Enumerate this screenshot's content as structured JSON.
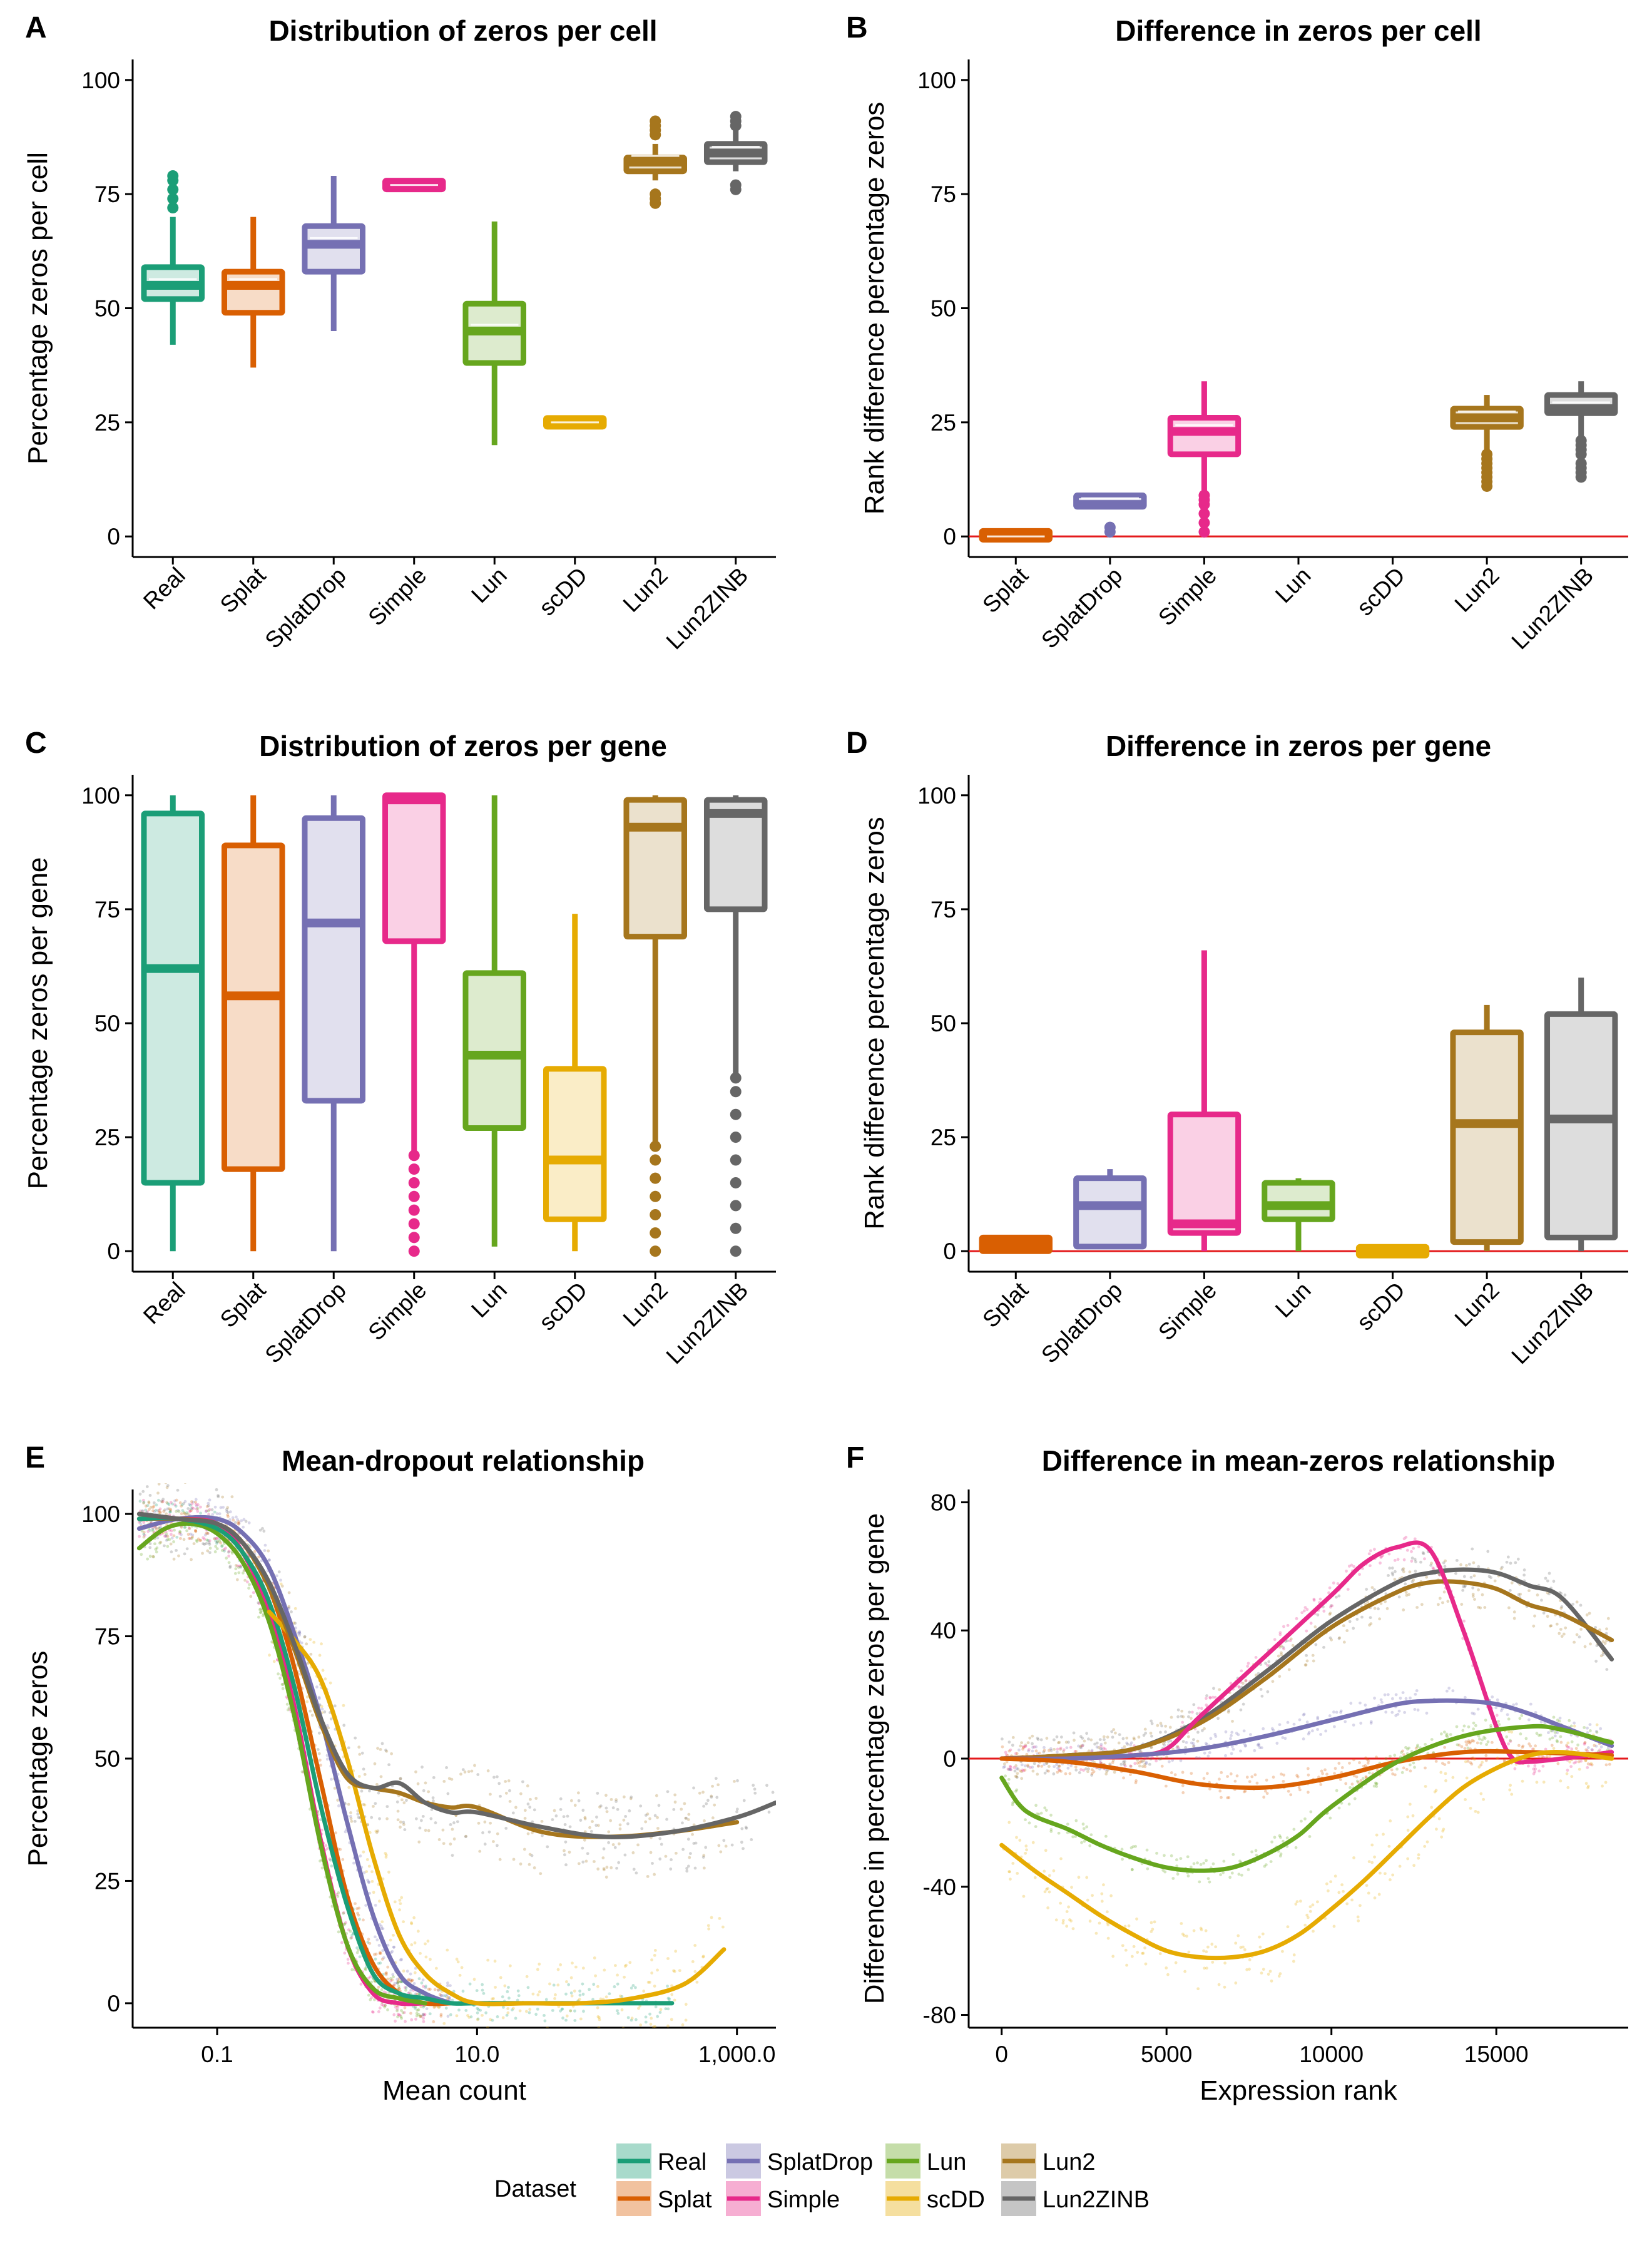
{
  "colors": {
    "Real": "#1b9e77",
    "Splat": "#d95f02",
    "SplatDrop": "#7570b3",
    "Simple": "#e7298a",
    "Lun": "#66a61e",
    "scDD": "#e6ab02",
    "Lun2": "#a6761d",
    "Lun2ZINB": "#666666",
    "refline": "#e41a1c"
  },
  "legend": {
    "title": "Dataset",
    "items": [
      "Real",
      "SplatDrop",
      "Lun",
      "Lun2",
      "Splat",
      "Simple",
      "scDD",
      "Lun2ZINB"
    ]
  },
  "chart_data": [
    {
      "tag": "A",
      "type": "box",
      "title": "Distribution of zeros per cell",
      "xlabel": "",
      "ylabel": "Percentage zeros per cell",
      "ylim": [
        0,
        100
      ],
      "yticks": [
        0,
        25,
        50,
        75,
        100
      ],
      "categories": [
        "Real",
        "Splat",
        "SplatDrop",
        "Simple",
        "Lun",
        "scDD",
        "Lun2",
        "Lun2ZINB"
      ],
      "boxes": [
        {
          "name": "Real",
          "min": 42,
          "q1": 52,
          "median": 55,
          "q3": 59,
          "max": 70,
          "outliers": [
            72,
            74,
            76,
            78,
            79
          ]
        },
        {
          "name": "Splat",
          "min": 37,
          "q1": 49,
          "median": 55,
          "q3": 58,
          "max": 70,
          "outliers": []
        },
        {
          "name": "SplatDrop",
          "min": 45,
          "q1": 58,
          "median": 64,
          "q3": 68,
          "max": 79,
          "outliers": []
        },
        {
          "name": "Simple",
          "min": 76.5,
          "q1": 76.8,
          "median": 77,
          "q3": 77.2,
          "max": 77.5,
          "outliers": []
        },
        {
          "name": "Lun",
          "min": 20,
          "q1": 38,
          "median": 45,
          "q3": 51,
          "max": 69,
          "outliers": []
        },
        {
          "name": "scDD",
          "min": 24.6,
          "q1": 24.9,
          "median": 25,
          "q3": 25.1,
          "max": 25.4,
          "outliers": []
        },
        {
          "name": "Lun2",
          "min": 78,
          "q1": 80,
          "median": 82,
          "q3": 83,
          "max": 86,
          "outliers": [
            73,
            74,
            75,
            88,
            89,
            90,
            91
          ]
        },
        {
          "name": "Lun2ZINB",
          "min": 80,
          "q1": 82,
          "median": 84,
          "q3": 86,
          "max": 89,
          "outliers": [
            76,
            77,
            90,
            91,
            92
          ]
        }
      ]
    },
    {
      "tag": "B",
      "type": "box",
      "title": "Difference in zeros per cell",
      "xlabel": "",
      "ylabel": "Rank difference percentage zeros",
      "ylim": [
        0,
        100
      ],
      "yticks": [
        0,
        25,
        50,
        75,
        100
      ],
      "hline": 0,
      "categories": [
        "Splat",
        "SplatDrop",
        "Simple",
        "Lun",
        "scDD",
        "Lun2",
        "Lun2ZINB"
      ],
      "boxes": [
        {
          "name": "Splat",
          "min": 0,
          "q1": 0,
          "median": 0,
          "q3": 0.5,
          "max": 1,
          "outliers": []
        },
        {
          "name": "SplatDrop",
          "min": 6,
          "q1": 6.5,
          "median": 7,
          "q3": 9,
          "max": 9,
          "outliers": [
            1,
            2
          ]
        },
        {
          "name": "Simple",
          "min": 10,
          "q1": 18,
          "median": 23,
          "q3": 26,
          "max": 34,
          "outliers": [
            1,
            3,
            5,
            7,
            8,
            9
          ]
        },
        {
          "name": "Lun2",
          "min": 19,
          "q1": 24,
          "median": 26,
          "q3": 28,
          "max": 31,
          "outliers": [
            11,
            12,
            13,
            14,
            15,
            16,
            17,
            18
          ]
        },
        {
          "name": "Lun2ZINB",
          "min": 22,
          "q1": 27,
          "median": 28,
          "q3": 31,
          "max": 34,
          "outliers": [
            13,
            14,
            15,
            16,
            18,
            19,
            20,
            21
          ]
        }
      ]
    },
    {
      "tag": "C",
      "type": "box",
      "title": "Distribution of zeros per gene",
      "xlabel": "",
      "ylabel": "Percentage zeros per gene",
      "ylim": [
        0,
        100
      ],
      "yticks": [
        0,
        25,
        50,
        75,
        100
      ],
      "categories": [
        "Real",
        "Splat",
        "SplatDrop",
        "Simple",
        "Lun",
        "scDD",
        "Lun2",
        "Lun2ZINB"
      ],
      "boxes": [
        {
          "name": "Real",
          "min": 0,
          "q1": 15,
          "median": 62,
          "q3": 96,
          "max": 100,
          "outliers": []
        },
        {
          "name": "Splat",
          "min": 0,
          "q1": 18,
          "median": 56,
          "q3": 89,
          "max": 100,
          "outliers": []
        },
        {
          "name": "SplatDrop",
          "min": 0,
          "q1": 33,
          "median": 72,
          "q3": 95,
          "max": 100,
          "outliers": []
        },
        {
          "name": "Simple",
          "min": 22,
          "q1": 68,
          "median": 99,
          "q3": 100,
          "max": 100,
          "outliers": [
            0,
            3,
            6,
            9,
            12,
            15,
            18,
            21
          ]
        },
        {
          "name": "Lun",
          "min": 1,
          "q1": 27,
          "median": 43,
          "q3": 61,
          "max": 100,
          "outliers": []
        },
        {
          "name": "scDD",
          "min": 0,
          "q1": 7,
          "median": 20,
          "q3": 40,
          "max": 74,
          "outliers": []
        },
        {
          "name": "Lun2",
          "min": 24,
          "q1": 69,
          "median": 93,
          "q3": 99,
          "max": 100,
          "outliers": [
            0,
            4,
            8,
            12,
            16,
            20,
            23
          ]
        },
        {
          "name": "Lun2ZINB",
          "min": 39,
          "q1": 75,
          "median": 96,
          "q3": 99,
          "max": 100,
          "outliers": [
            0,
            5,
            10,
            15,
            20,
            25,
            30,
            35,
            38
          ]
        }
      ]
    },
    {
      "tag": "D",
      "type": "box",
      "title": "Difference in zeros per gene",
      "xlabel": "",
      "ylabel": "Rank difference percentage zeros",
      "ylim": [
        0,
        100
      ],
      "yticks": [
        0,
        25,
        50,
        75,
        100
      ],
      "hline": 0,
      "categories": [
        "Splat",
        "SplatDrop",
        "Simple",
        "Lun",
        "scDD",
        "Lun2",
        "Lun2ZINB"
      ],
      "boxes": [
        {
          "name": "Splat",
          "min": 0,
          "q1": 0,
          "median": 1.5,
          "q3": 3,
          "max": 3,
          "outliers": []
        },
        {
          "name": "SplatDrop",
          "min": 1,
          "q1": 1,
          "median": 10,
          "q3": 16,
          "max": 18,
          "outliers": []
        },
        {
          "name": "Simple",
          "min": 0,
          "q1": 4,
          "median": 6,
          "q3": 30,
          "max": 66,
          "outliers": []
        },
        {
          "name": "Lun",
          "min": 0,
          "q1": 7,
          "median": 10,
          "q3": 15,
          "max": 16,
          "outliers": []
        },
        {
          "name": "scDD",
          "min": 0,
          "q1": 0,
          "median": 0,
          "q3": 0,
          "max": 0,
          "outliers": []
        },
        {
          "name": "Lun2",
          "min": 0,
          "q1": 2,
          "median": 28,
          "q3": 48,
          "max": 54,
          "outliers": []
        },
        {
          "name": "Lun2ZINB",
          "min": 0,
          "q1": 3,
          "median": 29,
          "q3": 52,
          "max": 60,
          "outliers": []
        }
      ]
    },
    {
      "tag": "E",
      "type": "line",
      "title": "Mean-dropout relationship",
      "xlabel": "Mean count",
      "ylabel": "Percentage zeros",
      "xscale": "log10",
      "xlim_log10": [
        -1.65,
        3.3
      ],
      "xticks": [
        0.1,
        10.0,
        1000.0
      ],
      "xticklabels": [
        "0.1",
        "10.0",
        "1,000.0"
      ],
      "ylim": [
        -5,
        105
      ],
      "yticks": [
        0,
        25,
        50,
        75,
        100
      ],
      "series": [
        {
          "name": "SplatDrop",
          "x": [
            -1.6,
            -1.3,
            -1.0,
            -0.8,
            -0.6,
            -0.4,
            -0.2,
            0,
            0.2,
            0.4,
            0.6,
            0.8
          ],
          "y": [
            97,
            99,
            99,
            96,
            89,
            75,
            58,
            37,
            18,
            6,
            2,
            0
          ]
        },
        {
          "name": "Simple",
          "x": [
            -1.6,
            -1.3,
            -1.0,
            -0.8,
            -0.6,
            -0.4,
            -0.2,
            0,
            0.2,
            0.4,
            0.6
          ],
          "y": [
            99,
            99,
            98,
            92,
            80,
            60,
            33,
            12,
            2,
            0,
            0
          ]
        },
        {
          "name": "Splat",
          "x": [
            -1.6,
            -1.3,
            -1.0,
            -0.8,
            -0.6,
            -0.4,
            -0.2,
            0,
            0.2,
            0.4,
            0.6,
            0.8
          ],
          "y": [
            99,
            99,
            98,
            94,
            85,
            68,
            45,
            22,
            8,
            2,
            0,
            0
          ]
        },
        {
          "name": "Lun",
          "x": [
            -1.6,
            -1.4,
            -1.2,
            -1.0,
            -0.8,
            -0.6,
            -0.4,
            -0.2,
            0,
            0.2,
            0.4,
            0.6
          ],
          "y": [
            93,
            97,
            98,
            96,
            90,
            78,
            58,
            32,
            12,
            3,
            1,
            0
          ]
        },
        {
          "name": "Real",
          "x": [
            -1.6,
            -1.3,
            -1.0,
            -0.8,
            -0.6,
            -0.4,
            -0.2,
            0,
            0.2,
            0.4,
            0.6,
            0.8,
            1.0,
            1.5,
            2.0,
            2.5
          ],
          "y": [
            99,
            99,
            97,
            92,
            82,
            64,
            40,
            20,
            6,
            2,
            1,
            0,
            0,
            0,
            0,
            0
          ]
        },
        {
          "name": "scDD",
          "x": [
            -0.6,
            -0.4,
            -0.2,
            0,
            0.2,
            0.4,
            0.6,
            0.8,
            1.0,
            1.4,
            1.8,
            2.2,
            2.6,
            2.9
          ],
          "y": [
            80,
            74,
            66,
            50,
            30,
            14,
            6,
            2,
            0,
            0,
            0,
            1,
            4,
            11
          ]
        },
        {
          "name": "Lun2",
          "x": [
            -1.6,
            -1.3,
            -1.0,
            -0.8,
            -0.6,
            -0.4,
            -0.2,
            0,
            0.2,
            0.4,
            0.6,
            0.8,
            1.0,
            1.5,
            2.0,
            2.5,
            3.0
          ],
          "y": [
            100,
            99,
            98,
            94,
            85,
            72,
            57,
            46,
            44,
            43,
            41,
            40,
            40,
            35,
            34,
            35,
            37
          ]
        },
        {
          "name": "Lun2ZINB",
          "x": [
            -1.6,
            -1.3,
            -1.0,
            -0.8,
            -0.6,
            -0.4,
            -0.2,
            0,
            0.2,
            0.4,
            0.6,
            0.8,
            1.0,
            1.5,
            2.0,
            2.5,
            3.0,
            3.3
          ],
          "y": [
            100,
            99,
            98,
            94,
            86,
            73,
            58,
            47,
            44,
            45,
            41,
            39,
            39,
            36,
            34,
            35,
            38,
            41
          ]
        }
      ]
    },
    {
      "tag": "F",
      "type": "line",
      "title": "Difference in mean-zeros relationship",
      "xlabel": "Expression rank",
      "ylabel": "Difference in percentage zeros per gene",
      "xlim": [
        -1000,
        19000
      ],
      "xticks": [
        0,
        5000,
        10000,
        15000
      ],
      "ylim": [
        -84,
        84
      ],
      "yticks": [
        -80,
        -40,
        0,
        40,
        80
      ],
      "hline": 0,
      "series": [
        {
          "name": "Lun2ZINB",
          "x": [
            0,
            2000,
            4000,
            6000,
            8000,
            10000,
            12000,
            13000,
            14000,
            15000,
            16000,
            17000,
            18500
          ],
          "y": [
            0,
            1,
            3,
            12,
            27,
            43,
            55,
            58,
            59,
            58,
            54,
            50,
            31
          ]
        },
        {
          "name": "Lun2",
          "x": [
            0,
            2000,
            4000,
            6000,
            8000,
            10000,
            12000,
            13000,
            14000,
            15000,
            16000,
            17000,
            18500
          ],
          "y": [
            0,
            1,
            3,
            11,
            25,
            41,
            52,
            55,
            55,
            53,
            48,
            45,
            37
          ]
        },
        {
          "name": "Simple",
          "x": [
            0,
            2000,
            4000,
            5000,
            6000,
            8000,
            10000,
            11000,
            12000,
            13000,
            14000,
            15000,
            15500,
            16000,
            17000,
            18500
          ],
          "y": [
            0,
            0,
            1,
            3,
            13,
            32,
            51,
            61,
            66,
            65,
            40,
            10,
            0,
            -1,
            0,
            2
          ]
        },
        {
          "name": "SplatDrop",
          "x": [
            0,
            2000,
            4000,
            6000,
            8000,
            10000,
            12000,
            13000,
            14000,
            15000,
            16000,
            17000,
            18500
          ],
          "y": [
            0,
            0,
            1,
            3,
            7,
            12,
            17,
            18,
            18,
            17,
            14,
            10,
            4
          ]
        },
        {
          "name": "Splat",
          "x": [
            0,
            2000,
            4000,
            6000,
            8000,
            10000,
            12000,
            14000,
            16000,
            18500
          ],
          "y": [
            0,
            -1,
            -4,
            -8,
            -9,
            -6,
            -1,
            2,
            2,
            1
          ]
        },
        {
          "name": "Lun",
          "x": [
            0,
            500,
            1000,
            2000,
            3000,
            4000,
            5000,
            6000,
            7000,
            8000,
            9000,
            10000,
            12000,
            14000,
            16000,
            17000,
            18500
          ],
          "y": [
            -6,
            -14,
            -18,
            -22,
            -27,
            -31,
            -34,
            -35,
            -34,
            -30,
            -24,
            -15,
            -1,
            7,
            10,
            9,
            5
          ]
        },
        {
          "name": "scDD",
          "x": [
            0,
            1000,
            2000,
            3000,
            4000,
            5000,
            6000,
            7000,
            8000,
            9000,
            10000,
            11000,
            12000,
            13000,
            14000,
            15000,
            16000,
            17000,
            18500
          ],
          "y": [
            -27,
            -35,
            -42,
            -49,
            -55,
            -60,
            -62,
            -62,
            -60,
            -55,
            -47,
            -38,
            -28,
            -18,
            -9,
            -3,
            1,
            2,
            0
          ]
        }
      ]
    }
  ]
}
